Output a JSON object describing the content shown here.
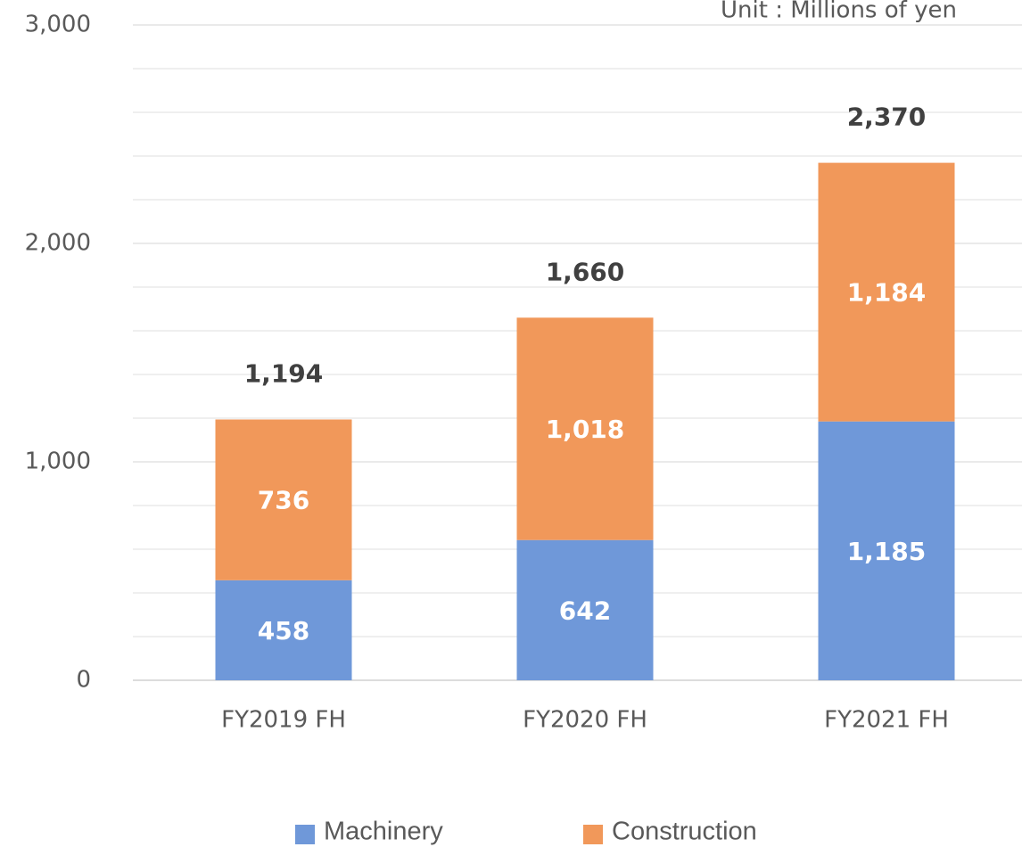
{
  "chart_data": {
    "type": "stacked_bar",
    "subtitle": "Unit : Millions of yen",
    "categories": [
      "FY2019 FH",
      "FY2020 FH",
      "FY2021 FH"
    ],
    "series": [
      {
        "name": "Machinery",
        "color": "#6f98d9",
        "values": [
          458,
          642,
          1185
        ],
        "value_labels": [
          "458",
          "642",
          "1,185"
        ]
      },
      {
        "name": "Construction",
        "color": "#f1985a",
        "values": [
          736,
          1018,
          1184
        ],
        "value_labels": [
          "736",
          "1,018",
          "1,184"
        ]
      }
    ],
    "totals": [
      1194,
      1660,
      2370
    ],
    "total_labels": [
      "1,194",
      "1,660",
      "2,370"
    ],
    "ylim": [
      0,
      3000
    ],
    "yticks": [
      0,
      {
        "value": 1000,
        "label": "1,000"
      },
      {
        "value": 2000,
        "label": "2,000"
      },
      {
        "value": 3000,
        "label": "3,000"
      }
    ],
    "minor_yticks": [
      200,
      400,
      600,
      800,
      1200,
      1400,
      1600,
      1800,
      2200,
      2400,
      2600,
      2800
    ],
    "grid": true,
    "legend": "bottom"
  }
}
